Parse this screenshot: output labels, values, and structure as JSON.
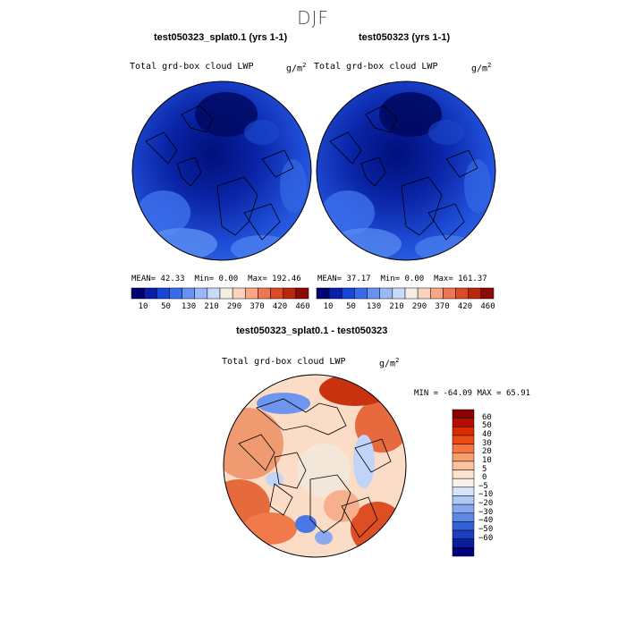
{
  "figure": {
    "season": "DJF"
  },
  "panels": [
    {
      "title": "test050323_splat0.1 (yrs 1-1)",
      "variable": "Total grd-box cloud LWP",
      "units": "g/m",
      "units_exp": "2",
      "stats": {
        "mean": "MEAN=  42.33",
        "min": "Min=   0.00",
        "max": "Max= 192.46"
      }
    },
    {
      "title": "test050323 (yrs 1-1)",
      "variable": "Total grd-box cloud LWP",
      "units": "g/m",
      "units_exp": "2",
      "stats": {
        "mean": "MEAN=  37.17",
        "min": "Min=   0.00",
        "max": "Max= 161.37"
      }
    }
  ],
  "colorbar_abs": {
    "colors": [
      "#00006e",
      "#0a1fa8",
      "#1846d6",
      "#3a6bea",
      "#6791f3",
      "#9ab8f7",
      "#c8d9fb",
      "#f4efe4",
      "#fbd3bd",
      "#f7a883",
      "#ef7652",
      "#dd4a27",
      "#bb2410",
      "#8b0c05"
    ],
    "labels": [
      "10",
      "50",
      "130",
      "210",
      "290",
      "370",
      "420",
      "460"
    ]
  },
  "difference": {
    "title": "test050323_splat0.1 - test050323",
    "variable": "Total grd-box cloud LWP",
    "units": "g/m",
    "units_exp": "2",
    "minmax": "MIN = -64.09 MAX =  65.91",
    "colorbar": {
      "colors": [
        "#8b0000",
        "#b30f00",
        "#d92a00",
        "#ee4a14",
        "#f6743e",
        "#f99c6e",
        "#fbc2a0",
        "#fde2cc",
        "#f7f3ec",
        "#d6e3fb",
        "#b0c8f6",
        "#86a8ef",
        "#5d86e5",
        "#3561d6",
        "#1a3ebf",
        "#0a1f97",
        "#00007a"
      ],
      "labels": [
        "60",
        "50",
        "40",
        "30",
        "20",
        "10",
        "5",
        "0",
        "-5",
        "-10",
        "-20",
        "-30",
        "-40",
        "-50",
        "-60"
      ]
    }
  }
}
